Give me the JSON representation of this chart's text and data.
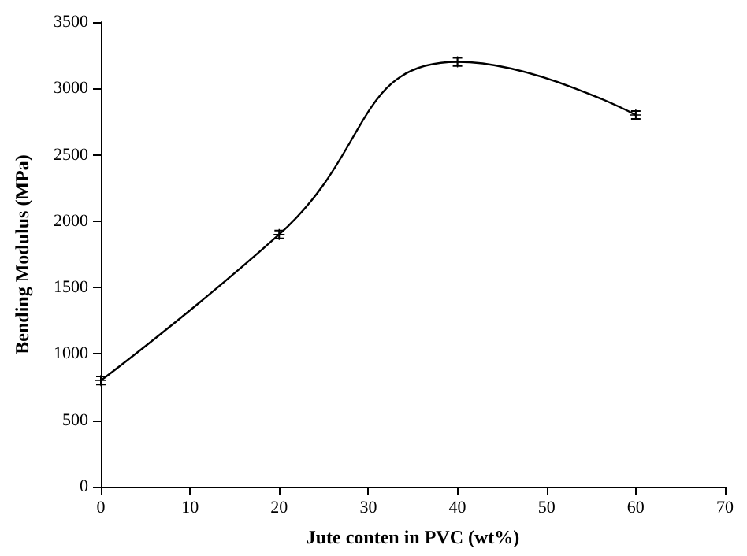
{
  "chart_data": {
    "type": "line",
    "xlabel": "Jute conten in PVC (wt%)",
    "ylabel": "Bending Modulus (MPa)",
    "x": [
      0,
      20,
      40,
      60
    ],
    "series": [
      {
        "color": "#000000",
        "values": [
          800,
          1900,
          3200,
          2800
        ],
        "errors": [
          30,
          30,
          30,
          30
        ]
      }
    ],
    "xlim": [
      0,
      70
    ],
    "xticks": [
      0,
      10,
      20,
      30,
      40,
      50,
      60,
      70
    ],
    "ylim": [
      0,
      3500
    ],
    "yticks": [
      0,
      500,
      1000,
      1500,
      2000,
      2500,
      3000,
      3500
    ],
    "grid": false,
    "marker": "cross",
    "line_style": "solid"
  }
}
